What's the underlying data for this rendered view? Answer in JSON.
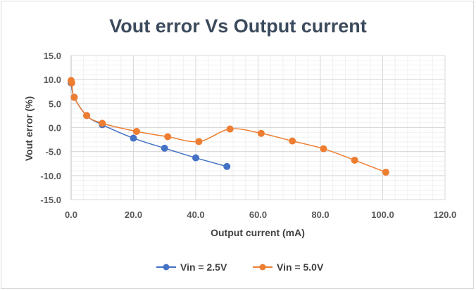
{
  "chart_data": {
    "type": "scatter",
    "title": "Vout error Vs Output current",
    "xlabel": "Output current (mA)",
    "ylabel": "Vout error (%)",
    "xlim": [
      0,
      120
    ],
    "ylim": [
      -15,
      15
    ],
    "x_ticks": [
      "0.0",
      "20.0",
      "40.0",
      "60.0",
      "80.0",
      "100.0",
      "120.0"
    ],
    "y_ticks": [
      "15.0",
      "10.0",
      "5.0",
      "0.0",
      "-5.0",
      "-10.0",
      "-15.0"
    ],
    "grid": true,
    "legend_position": "bottom",
    "series": [
      {
        "name": "Vin = 2.5V",
        "color": "#4472c4",
        "x": [
          0.0,
          1.0,
          5.0,
          10.0,
          20.0,
          30.0,
          40.0,
          50.0
        ],
        "y": [
          9.3,
          6.3,
          2.5,
          0.6,
          -2.2,
          -4.3,
          -6.3,
          -8.1
        ]
      },
      {
        "name": "Vin = 5.0V",
        "color": "#ed7d31",
        "x": [
          0.0,
          0.2,
          1.0,
          5.0,
          10.0,
          21.0,
          31.0,
          41.0,
          51.0,
          61.0,
          71.0,
          81.0,
          91.0,
          101.0
        ],
        "y": [
          9.8,
          9.3,
          6.3,
          2.5,
          0.9,
          -0.8,
          -1.9,
          -2.9,
          -0.3,
          -1.2,
          -2.8,
          -4.4,
          -6.8,
          -9.3
        ]
      }
    ]
  }
}
